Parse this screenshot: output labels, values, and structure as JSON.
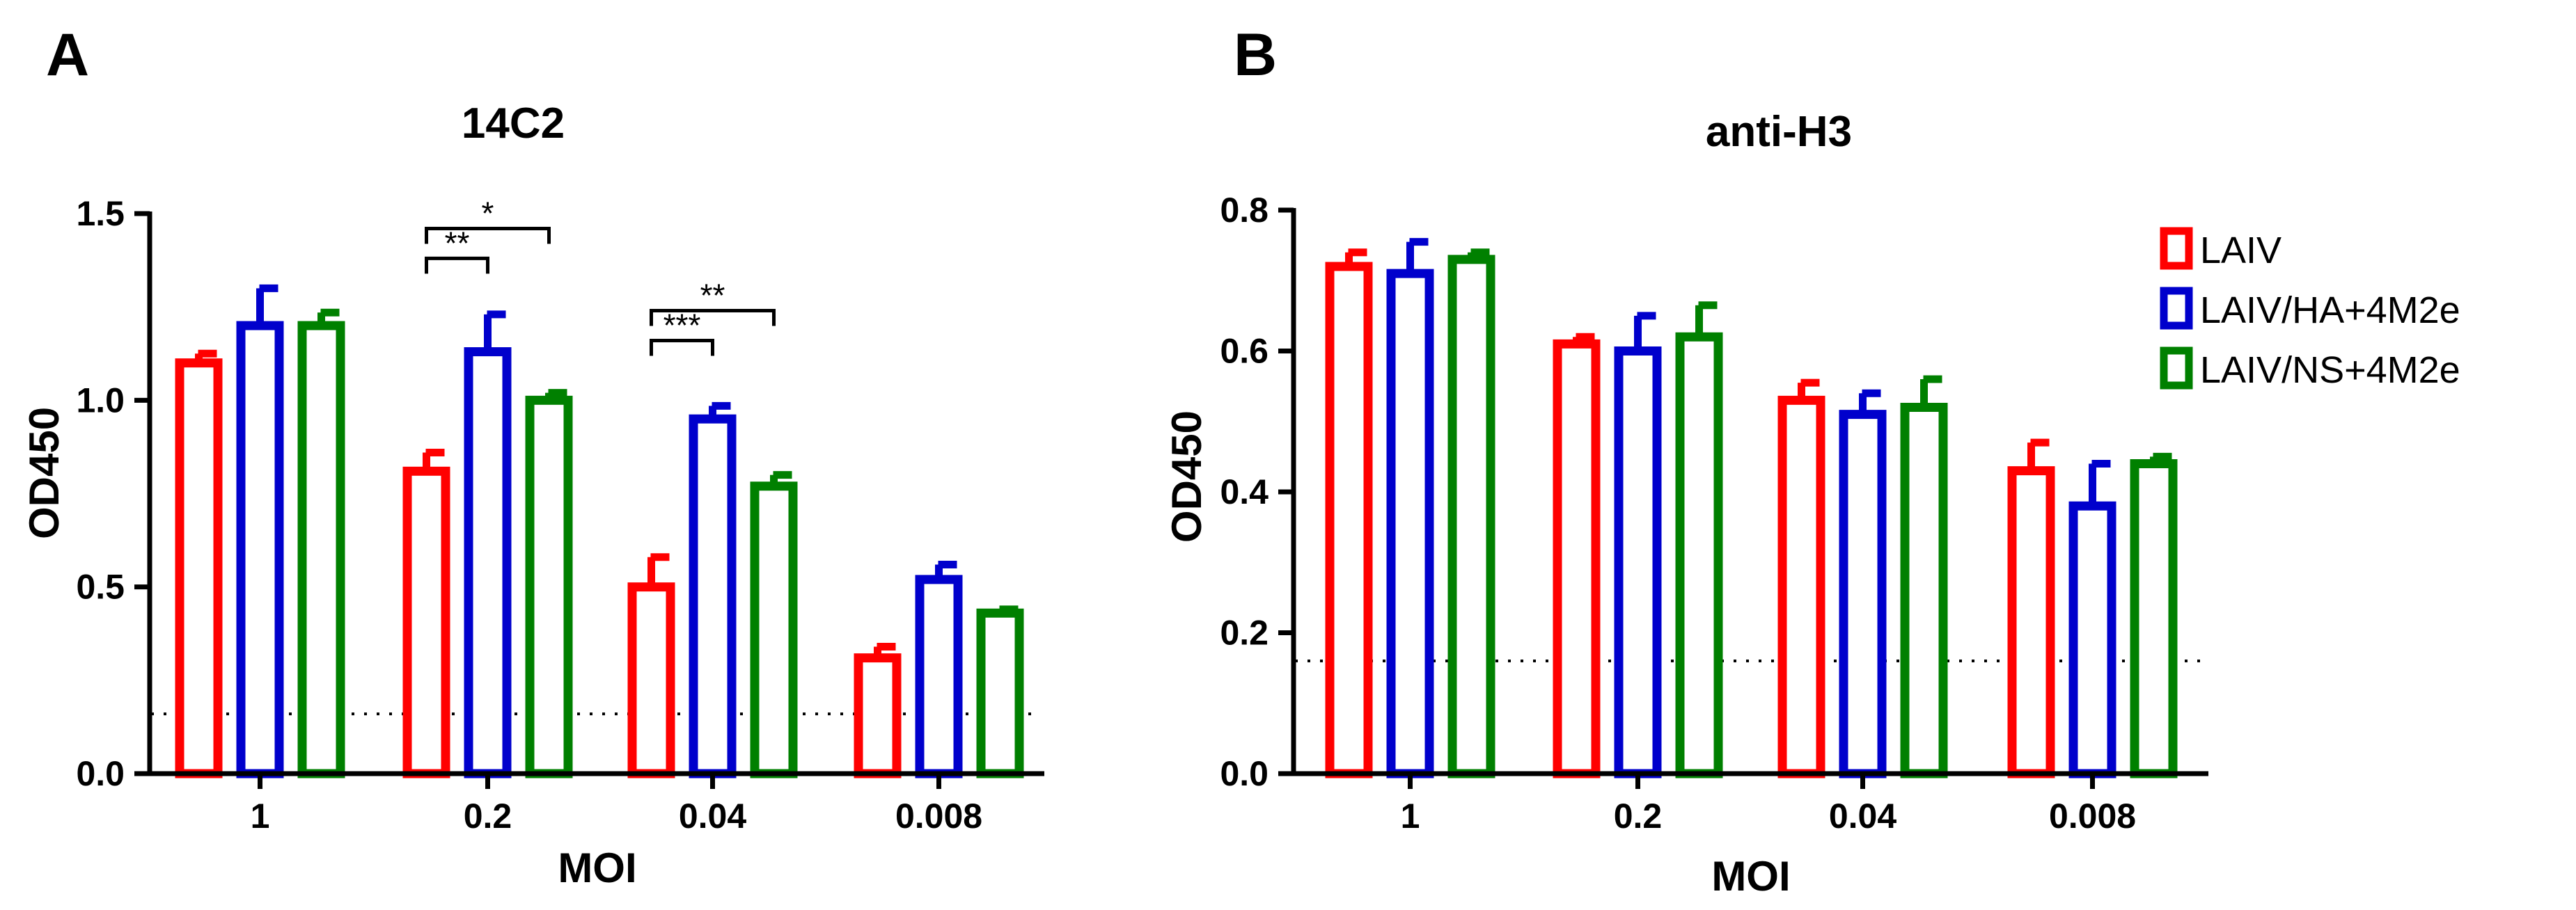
{
  "panels": [
    {
      "letter": "A",
      "chart_data": {
        "type": "bar",
        "title": "14C2",
        "xlabel": "MOI",
        "ylabel": "OD450",
        "categories": [
          "1",
          "0.2",
          "0.04",
          "0.008"
        ],
        "ylim": [
          0,
          1.5
        ],
        "yticks": [
          "0.0",
          "0.5",
          "1.0",
          "1.5"
        ],
        "ytick_values": [
          0,
          0.5,
          1.0,
          1.5
        ],
        "grid": false,
        "cutoff": 0.16,
        "series": [
          {
            "name": "LAIV",
            "color": "#ff0000",
            "values": [
              1.1,
              0.81,
              0.5,
              0.31
            ],
            "errors": [
              0.025,
              0.05,
              0.08,
              0.03
            ]
          },
          {
            "name": "LAIV/HA+4M2e",
            "color": "#0000cc",
            "values": [
              1.2,
              1.13,
              0.95,
              0.52
            ],
            "errors": [
              0.1,
              0.1,
              0.035,
              0.04
            ]
          },
          {
            "name": "LAIV/NS+4M2e",
            "color": "#008000",
            "values": [
              1.2,
              1.0,
              0.77,
              0.43
            ],
            "errors": [
              0.035,
              0.02,
              0.03,
              0.01
            ]
          }
        ],
        "significance": [
          {
            "label": "*",
            "category": 1,
            "from": 0,
            "to": 2,
            "y": 1.46
          },
          {
            "label": "**",
            "category": 1,
            "from": 0,
            "to": 1,
            "y": 1.38
          },
          {
            "label": "**",
            "category": 2,
            "from": 0,
            "to": 2,
            "y": 1.24
          },
          {
            "label": "***",
            "category": 2,
            "from": 0,
            "to": 1,
            "y": 1.16
          }
        ]
      }
    },
    {
      "letter": "B",
      "chart_data": {
        "type": "bar",
        "title": "anti-H3",
        "xlabel": "MOI",
        "ylabel": "OD450",
        "categories": [
          "1",
          "0.2",
          "0.04",
          "0.008"
        ],
        "ylim": [
          0,
          0.8
        ],
        "yticks": [
          "0.0",
          "0.2",
          "0.4",
          "0.6",
          "0.8"
        ],
        "ytick_values": [
          0,
          0.2,
          0.4,
          0.6,
          0.8
        ],
        "grid": false,
        "cutoff": 0.16,
        "series": [
          {
            "name": "LAIV",
            "color": "#ff0000",
            "values": [
              0.72,
              0.61,
              0.53,
              0.43
            ],
            "errors": [
              0.02,
              0.01,
              0.025,
              0.04
            ]
          },
          {
            "name": "LAIV/HA+4M2e",
            "color": "#0000cc",
            "values": [
              0.71,
              0.6,
              0.51,
              0.38
            ],
            "errors": [
              0.045,
              0.05,
              0.03,
              0.06
            ]
          },
          {
            "name": "LAIV/NS+4M2e",
            "color": "#008000",
            "values": [
              0.73,
              0.62,
              0.52,
              0.44
            ],
            "errors": [
              0.01,
              0.045,
              0.04,
              0.01
            ]
          }
        ],
        "significance": []
      }
    }
  ],
  "legend": {
    "entries": [
      "LAIV",
      "LAIV/HA+4M2e",
      "LAIV/NS+4M2e"
    ],
    "colors": [
      "#ff0000",
      "#0000cc",
      "#008000"
    ],
    "position": "right"
  }
}
